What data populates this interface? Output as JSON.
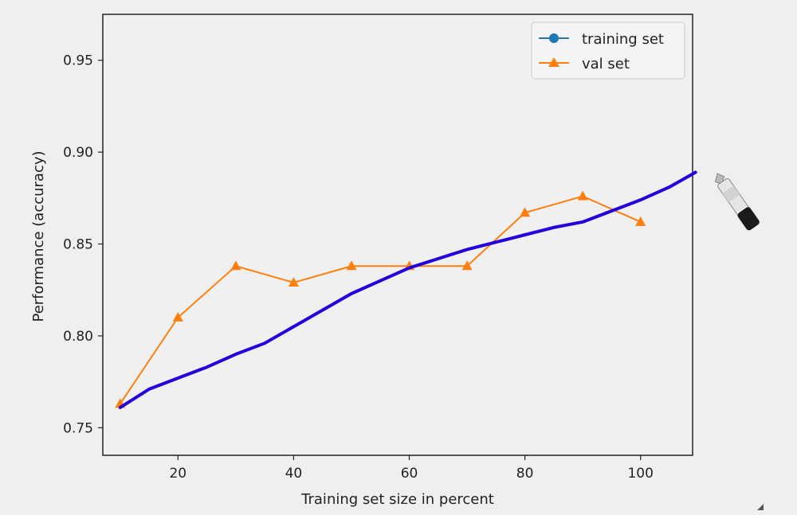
{
  "chart_data": {
    "type": "line",
    "xlabel": "Training set size in percent",
    "ylabel": "Performance (accuracy)",
    "xlim": [
      7,
      109
    ],
    "ylim": [
      0.735,
      0.975
    ],
    "xticks": [
      20,
      40,
      60,
      80,
      100
    ],
    "yticks": [
      0.75,
      0.8,
      0.85,
      0.9,
      0.95
    ],
    "grid": false,
    "legend_position": "top-right",
    "series": [
      {
        "name": "training set",
        "color": "#1f77b4",
        "marker": "circle",
        "line_style": "solid",
        "x": [],
        "y": []
      },
      {
        "name": "val set",
        "color": "#ff7f0e",
        "marker": "triangle-up",
        "line_style": "solid",
        "x": [
          10,
          20,
          30,
          40,
          50,
          60,
          70,
          80,
          90,
          100
        ],
        "y": [
          0.763,
          0.81,
          0.838,
          0.829,
          0.838,
          0.838,
          0.838,
          0.867,
          0.876,
          0.862
        ]
      }
    ],
    "annotations": [
      {
        "type": "hand-drawn-stroke",
        "color": "#2200dd",
        "x": [
          10,
          15,
          20,
          25,
          30,
          35,
          40,
          45,
          50,
          55,
          60,
          65,
          70,
          75,
          80,
          85,
          90,
          95,
          100,
          105,
          109.5
        ],
        "y": [
          0.761,
          0.771,
          0.777,
          0.783,
          0.79,
          0.796,
          0.805,
          0.814,
          0.823,
          0.83,
          0.837,
          0.842,
          0.847,
          0.851,
          0.855,
          0.859,
          0.862,
          0.868,
          0.874,
          0.881,
          0.889
        ]
      }
    ],
    "marker_icon": "marker-pen-icon"
  }
}
